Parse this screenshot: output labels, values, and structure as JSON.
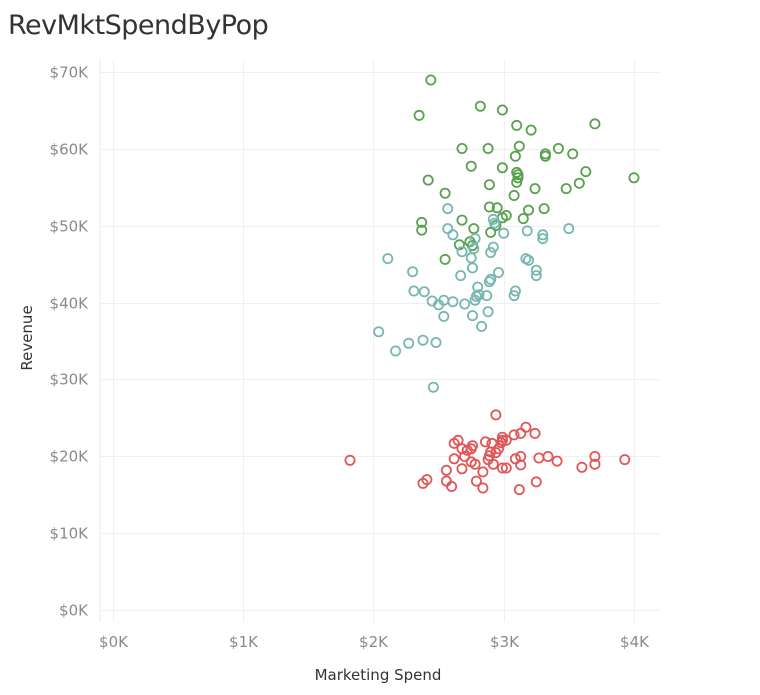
{
  "title": "RevMktSpendByPop",
  "chart_data": {
    "type": "scatter",
    "title": "RevMktSpendByPop",
    "xlabel": "Marketing Spend",
    "ylabel": "Revenue",
    "xlim": [
      -100,
      4200
    ],
    "ylim": [
      -1500,
      71500
    ],
    "x_ticks": [
      0,
      1000,
      2000,
      3000,
      4000
    ],
    "x_tick_labels": [
      "$0K",
      "$1K",
      "$2K",
      "$3K",
      "$4K"
    ],
    "y_ticks": [
      0,
      10000,
      20000,
      30000,
      40000,
      50000,
      60000,
      70000
    ],
    "y_tick_labels": [
      "$0K",
      "$10K",
      "$20K",
      "$30K",
      "$40K",
      "$50K",
      "$60K",
      "$70K"
    ],
    "grid": true,
    "legend": "none",
    "marker": "hollow-circle",
    "series": [
      {
        "color": "#59a14f",
        "points": [
          [
            2440,
            68900
          ],
          [
            2820,
            65500
          ],
          [
            2990,
            65000
          ],
          [
            2350,
            64300
          ],
          [
            3700,
            63200
          ],
          [
            3100,
            63000
          ],
          [
            3210,
            62400
          ],
          [
            3120,
            60300
          ],
          [
            3420,
            60000
          ],
          [
            2680,
            60000
          ],
          [
            2880,
            60000
          ],
          [
            3530,
            59300
          ],
          [
            3320,
            59300
          ],
          [
            3320,
            59000
          ],
          [
            3090,
            59000
          ],
          [
            2750,
            57700
          ],
          [
            2990,
            57500
          ],
          [
            3100,
            56900
          ],
          [
            3630,
            57000
          ],
          [
            3110,
            56600
          ],
          [
            3110,
            56200
          ],
          [
            4000,
            56200
          ],
          [
            3100,
            55600
          ],
          [
            3580,
            55500
          ],
          [
            2420,
            55900
          ],
          [
            2890,
            55300
          ],
          [
            3240,
            54800
          ],
          [
            3480,
            54800
          ],
          [
            2550,
            54200
          ],
          [
            3080,
            53900
          ],
          [
            2890,
            52400
          ],
          [
            2950,
            52300
          ],
          [
            3190,
            52000
          ],
          [
            3310,
            52200
          ],
          [
            3020,
            51300
          ],
          [
            3150,
            50900
          ],
          [
            2990,
            51000
          ],
          [
            2680,
            50700
          ],
          [
            2370,
            50400
          ],
          [
            2940,
            50000
          ],
          [
            2770,
            49600
          ],
          [
            2900,
            49100
          ],
          [
            2370,
            49400
          ],
          [
            2740,
            47900
          ],
          [
            2660,
            47500
          ],
          [
            2760,
            47400
          ],
          [
            2550,
            45600
          ]
        ]
      },
      {
        "color": "#76b7b2",
        "points": [
          [
            2570,
            52200
          ],
          [
            2920,
            50800
          ],
          [
            2930,
            50300
          ],
          [
            2570,
            49600
          ],
          [
            3180,
            49300
          ],
          [
            3000,
            49000
          ],
          [
            3500,
            49600
          ],
          [
            2610,
            48800
          ],
          [
            3300,
            48800
          ],
          [
            3300,
            48300
          ],
          [
            2780,
            48300
          ],
          [
            2770,
            47000
          ],
          [
            2680,
            46600
          ],
          [
            2920,
            47200
          ],
          [
            2900,
            46500
          ],
          [
            2110,
            45700
          ],
          [
            2750,
            45800
          ],
          [
            3170,
            45700
          ],
          [
            3190,
            45500
          ],
          [
            2760,
            44500
          ],
          [
            3250,
            44200
          ],
          [
            2300,
            44000
          ],
          [
            2960,
            43900
          ],
          [
            2670,
            43500
          ],
          [
            3250,
            43500
          ],
          [
            2900,
            43000
          ],
          [
            2890,
            42700
          ],
          [
            2800,
            42000
          ],
          [
            2310,
            41500
          ],
          [
            2390,
            41400
          ],
          [
            3090,
            41500
          ],
          [
            2810,
            41000
          ],
          [
            3080,
            40900
          ],
          [
            2790,
            40800
          ],
          [
            2870,
            40900
          ],
          [
            2780,
            40300
          ],
          [
            2450,
            40200
          ],
          [
            2540,
            40300
          ],
          [
            2610,
            40100
          ],
          [
            2700,
            39800
          ],
          [
            2500,
            39700
          ],
          [
            2880,
            38800
          ],
          [
            2540,
            38200
          ],
          [
            2760,
            38300
          ],
          [
            2830,
            36900
          ],
          [
            2040,
            36200
          ],
          [
            2380,
            35100
          ],
          [
            2480,
            34800
          ],
          [
            2270,
            34700
          ],
          [
            2170,
            33700
          ],
          [
            2460,
            29000
          ]
        ]
      },
      {
        "color": "#e15759",
        "points": [
          [
            2940,
            25400
          ],
          [
            3170,
            23800
          ],
          [
            3130,
            23000
          ],
          [
            3080,
            22800
          ],
          [
            3240,
            23000
          ],
          [
            2990,
            22500
          ],
          [
            2990,
            22100
          ],
          [
            2980,
            21800
          ],
          [
            2860,
            21900
          ],
          [
            2910,
            21700
          ],
          [
            2650,
            22100
          ],
          [
            2680,
            21000
          ],
          [
            3020,
            22100
          ],
          [
            2620,
            21700
          ],
          [
            2760,
            21400
          ],
          [
            2750,
            21000
          ],
          [
            2720,
            20800
          ],
          [
            2900,
            20600
          ],
          [
            2960,
            21000
          ],
          [
            2940,
            20500
          ],
          [
            2890,
            20100
          ],
          [
            2700,
            20000
          ],
          [
            3130,
            20000
          ],
          [
            3270,
            19800
          ],
          [
            3090,
            19700
          ],
          [
            3340,
            20000
          ],
          [
            3700,
            20000
          ],
          [
            2620,
            19700
          ],
          [
            2880,
            19600
          ],
          [
            3410,
            19400
          ],
          [
            3930,
            19600
          ],
          [
            1820,
            19500
          ],
          [
            2750,
            19300
          ],
          [
            2780,
            19000
          ],
          [
            2920,
            19000
          ],
          [
            3700,
            19000
          ],
          [
            2990,
            18500
          ],
          [
            3020,
            18500
          ],
          [
            3130,
            18900
          ],
          [
            3600,
            18600
          ],
          [
            2680,
            18400
          ],
          [
            2560,
            18200
          ],
          [
            2840,
            18000
          ],
          [
            2410,
            17000
          ],
          [
            2560,
            16800
          ],
          [
            2790,
            16800
          ],
          [
            3250,
            16700
          ],
          [
            2380,
            16500
          ],
          [
            2600,
            16100
          ],
          [
            2840,
            15900
          ],
          [
            3120,
            15700
          ]
        ]
      }
    ]
  }
}
